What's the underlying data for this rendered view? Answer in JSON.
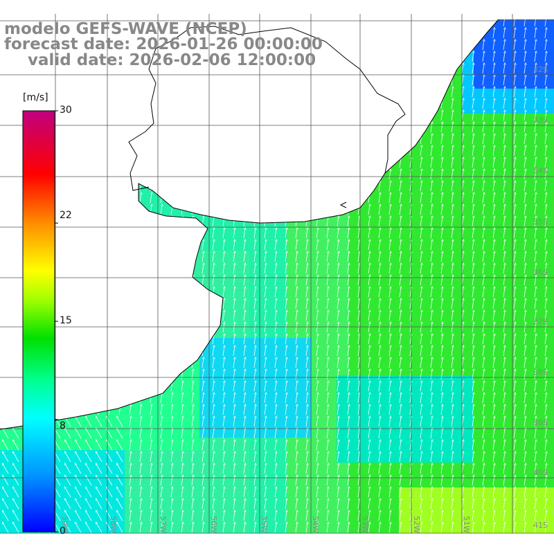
{
  "titles": {
    "model": "modelo GEFS-WAVE (NCEP)",
    "forecast": "forecast date: 2026-01-26 00:00:00",
    "valid": "valid date: 2026-02-06 12:00:00"
  },
  "colorbar": {
    "unit": "[m/s]",
    "min": 0,
    "max": 30,
    "tick_labels": [
      "30",
      "22",
      "15",
      "8",
      "0"
    ],
    "tick_values": [
      30,
      22,
      15,
      8,
      0
    ],
    "colors": [
      "#0000ff",
      "#00a0ff",
      "#00ffff",
      "#00ff80",
      "#00e000",
      "#80ff00",
      "#ffff00",
      "#ffa000",
      "#ff4000",
      "#ff0000",
      "#e00060",
      "#c00080"
    ]
  },
  "lat_labels": [
    "32S",
    "33S",
    "34S",
    "35S",
    "36S",
    "37S",
    "38S",
    "39S",
    "40S",
    "41S"
  ],
  "lon_labels": [
    "59W",
    "58W",
    "57W",
    "56W",
    "55W",
    "54W",
    "53W",
    "52W",
    "51W"
  ],
  "field_colors": {
    "land": "#ffffff",
    "coast": "#000000",
    "grid": "#555555",
    "arrow": "#ffffff",
    "colorbar_frame": "#000000"
  },
  "wind_direction": "from south / south-southeast (arrows point north)"
}
